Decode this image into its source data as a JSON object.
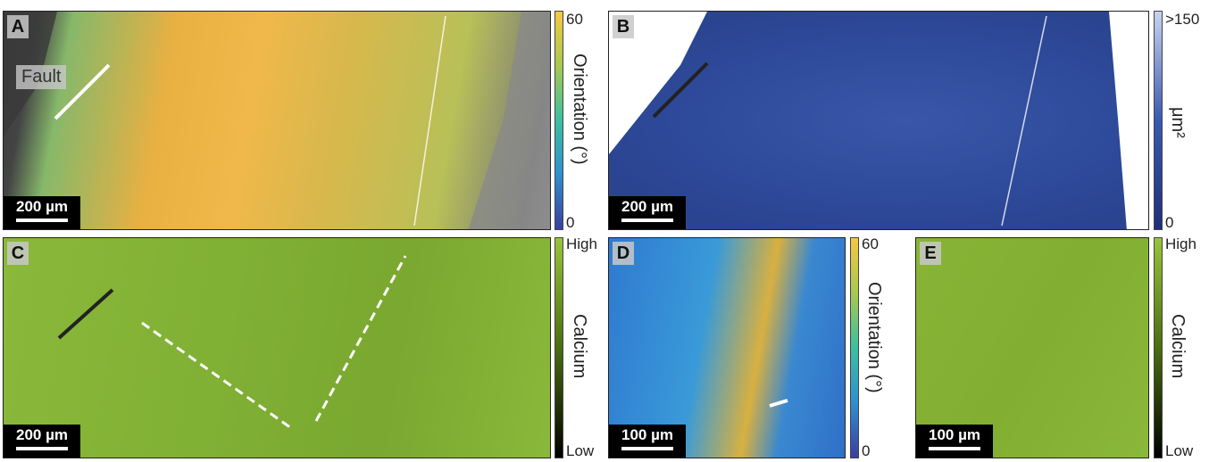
{
  "panels": {
    "a": {
      "letter": "A",
      "scale": "200 µm",
      "fault_label": "Fault",
      "colorbar": {
        "title": "Orientation (°)",
        "max": "60",
        "min": "0"
      }
    },
    "b": {
      "letter": "B",
      "scale": "200 µm",
      "colorbar": {
        "title": "μm²",
        "max": ">150",
        "min": "0"
      }
    },
    "c": {
      "letter": "C",
      "scale": "200 µm",
      "colorbar": {
        "title": "Calcium",
        "max": "High",
        "min": "Low"
      }
    },
    "d": {
      "letter": "D",
      "scale": "100 µm",
      "colorbar": {
        "title": "Orientation (°)",
        "max": "60",
        "min": "0"
      }
    },
    "e": {
      "letter": "E",
      "scale": "100 µm",
      "colorbar": {
        "title": "Calcium",
        "max": "High",
        "min": "Low"
      }
    }
  },
  "colors": {
    "orientation_gradient": [
      "#3b3fa0",
      "#2f8fd0",
      "#3cc0a0",
      "#a8c850",
      "#f5c842"
    ],
    "area_gradient": [
      "#1d2f7a",
      "#3a5ab0",
      "#c8d3ef"
    ],
    "calcium_gradient": [
      "#000000",
      "#4a6e10",
      "#9ac43a"
    ]
  }
}
